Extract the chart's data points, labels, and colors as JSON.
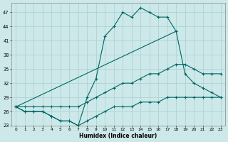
{
  "xlabel": "Humidex (Indice chaleur)",
  "bg_color": "#cce8e8",
  "grid_color": "#aacfcf",
  "line_color": "#006666",
  "xlim": [
    -0.5,
    23.5
  ],
  "ylim": [
    23,
    48
  ],
  "yticks": [
    23,
    26,
    29,
    32,
    35,
    38,
    41,
    44,
    47
  ],
  "xticks": [
    0,
    1,
    2,
    3,
    4,
    5,
    6,
    7,
    8,
    9,
    10,
    11,
    12,
    13,
    14,
    15,
    16,
    17,
    18,
    19,
    20,
    21,
    22,
    23
  ],
  "lines": [
    {
      "x": [
        0,
        1,
        2,
        3,
        4,
        5,
        6,
        7,
        8,
        9,
        10,
        11,
        12,
        13,
        14,
        15,
        16,
        17,
        18
      ],
      "y": [
        27,
        26,
        26,
        26,
        25,
        24,
        24,
        23,
        29,
        33,
        42,
        44,
        47,
        46,
        48,
        47,
        46,
        46,
        43
      ]
    },
    {
      "x": [
        0,
        18,
        19,
        20,
        21,
        22,
        23
      ],
      "y": [
        27,
        43,
        34,
        32,
        31,
        30,
        29
      ]
    },
    {
      "x": [
        0,
        1,
        2,
        3,
        4,
        5,
        6,
        7,
        8,
        9,
        10,
        11,
        12,
        13,
        14,
        15,
        16,
        17,
        18,
        19,
        20,
        21,
        22,
        23
      ],
      "y": [
        27,
        27,
        27,
        27,
        27,
        27,
        27,
        27,
        28,
        29,
        30,
        31,
        32,
        32,
        33,
        34,
        34,
        35,
        36,
        36,
        35,
        34,
        34,
        34
      ]
    },
    {
      "x": [
        0,
        1,
        2,
        3,
        4,
        5,
        6,
        7,
        8,
        9,
        10,
        11,
        12,
        13,
        14,
        15,
        16,
        17,
        18,
        19,
        20,
        21,
        22,
        23
      ],
      "y": [
        27,
        26,
        26,
        26,
        25,
        24,
        24,
        23,
        24,
        25,
        26,
        27,
        27,
        27,
        28,
        28,
        28,
        29,
        29,
        29,
        29,
        29,
        29,
        29
      ]
    }
  ]
}
